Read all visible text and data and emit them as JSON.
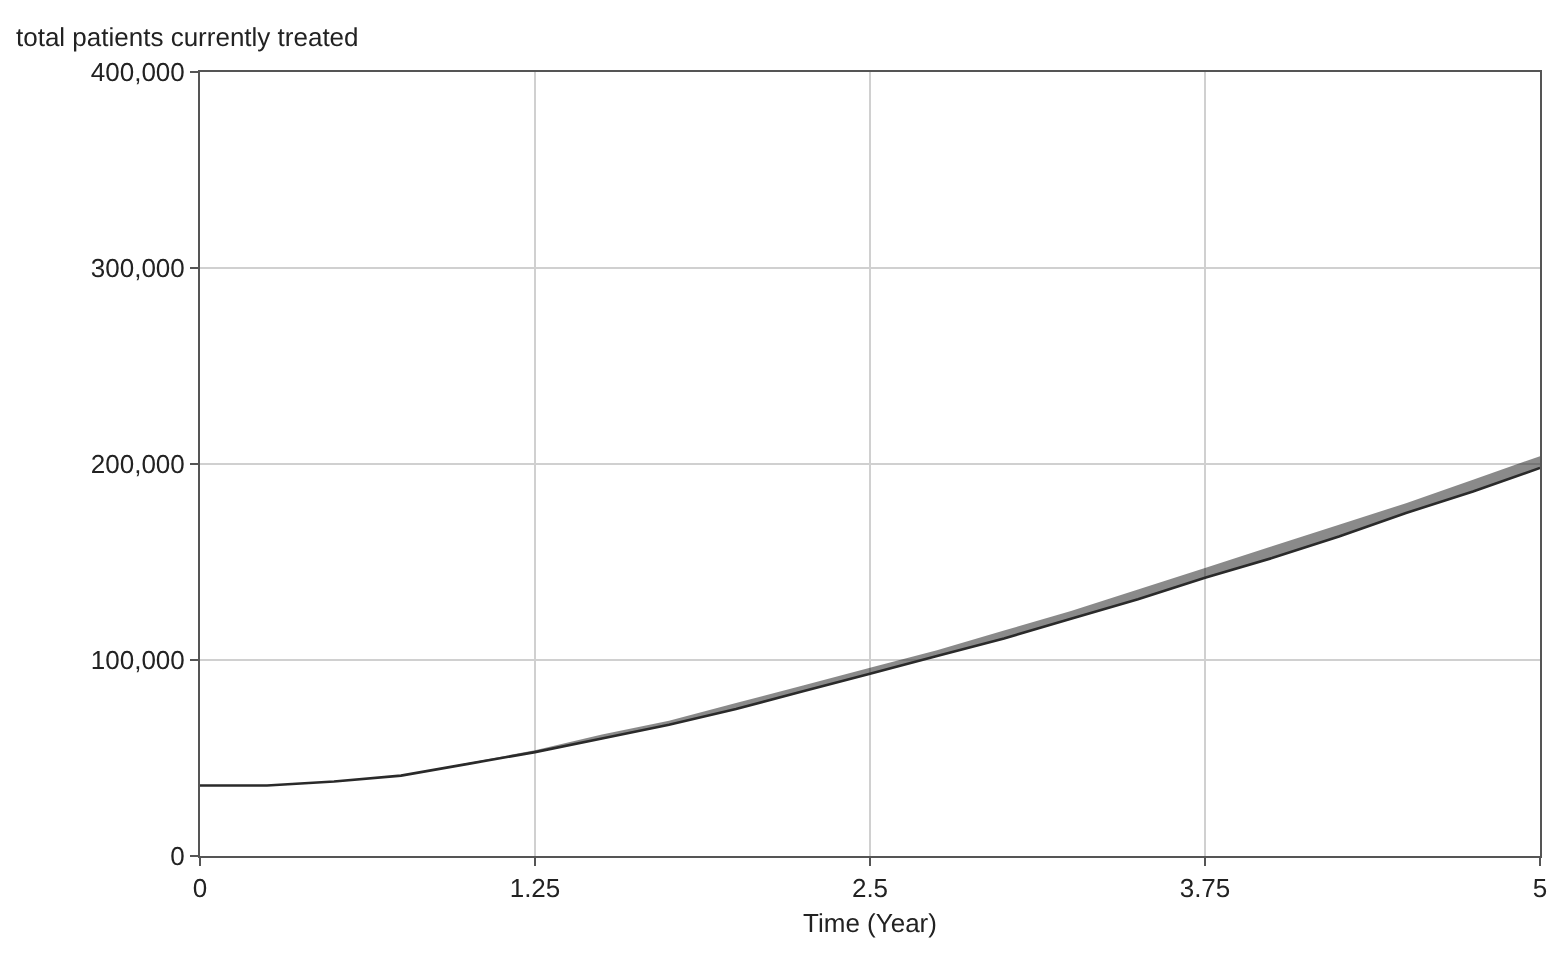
{
  "chart_data": {
    "type": "line",
    "ylabel": "total patients currently treated",
    "xlabel": "Time (Year)",
    "x": [
      0,
      0.25,
      0.5,
      0.75,
      1,
      1.25,
      1.5,
      1.75,
      2,
      2.25,
      2.5,
      2.75,
      3,
      3.25,
      3.5,
      3.75,
      4,
      4.25,
      4.5,
      4.75,
      5
    ],
    "series": [
      {
        "color": "#2a2a2a",
        "values": [
          36000,
          36000,
          38000,
          41000,
          47000,
          53000,
          60000,
          67000,
          75000,
          84000,
          93000,
          102000,
          111000,
          121000,
          131000,
          142000,
          152000,
          163000,
          175000,
          186000,
          198000
        ],
        "lower": [
          36000,
          36000,
          38000,
          41000,
          47000,
          53000,
          60000,
          67000,
          75000,
          84000,
          93000,
          102000,
          111000,
          121000,
          131000,
          142000,
          152000,
          163000,
          175000,
          186000,
          198000
        ],
        "upper": [
          36000,
          36000,
          38000,
          41000,
          47500,
          54000,
          62000,
          69000,
          78000,
          87000,
          96000,
          105000,
          115000,
          125000,
          136000,
          147000,
          158000,
          169000,
          180000,
          192000,
          204000
        ]
      }
    ],
    "xlim": [
      0,
      5
    ],
    "xticks": [
      0,
      1.25,
      2.5,
      3.75,
      5
    ],
    "ylim": [
      0,
      400000
    ],
    "yticks": [
      0,
      {
        "value": 100000,
        "label": "100,000"
      },
      {
        "value": 200000,
        "label": "200,000"
      },
      {
        "value": 300000,
        "label": "300,000"
      },
      {
        "value": 400000,
        "label": "400,000"
      }
    ],
    "grid": true,
    "marker": "none",
    "line_style": "solid"
  }
}
